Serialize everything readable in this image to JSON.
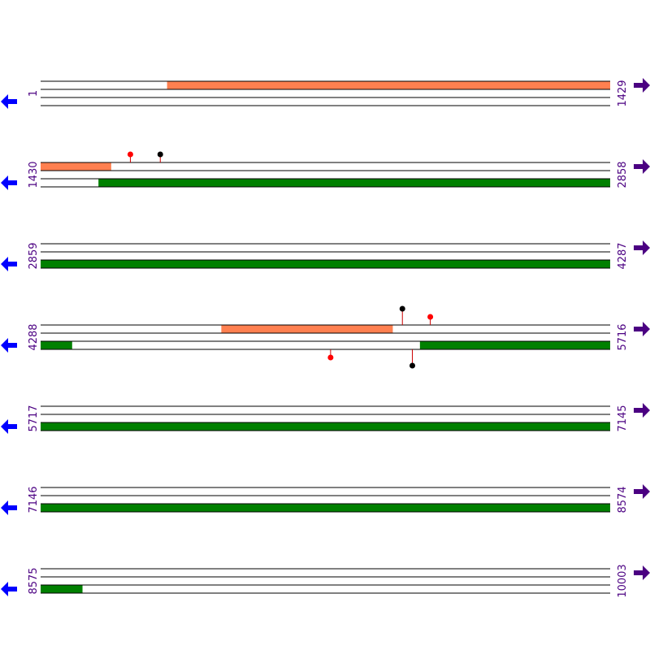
{
  "colors": {
    "line": "#000000",
    "salmon": "#FF8050",
    "green": "#008000",
    "left_arrow": "#0000FF",
    "right_arrow": "#4B0082",
    "label": "#4B0082",
    "stem": "#CC0000",
    "marker_red": "#FF0000",
    "marker_black": "#000000"
  },
  "rows": [
    {
      "start_label": "1",
      "end_label": "1429",
      "start": 1,
      "end": 1429,
      "features": [
        {
          "track": 0,
          "color": "salmon",
          "from": 318,
          "to": 1429
        }
      ],
      "markers": []
    },
    {
      "start_label": "1430",
      "end_label": "2858",
      "start": 1430,
      "end": 2858,
      "features": [
        {
          "track": 0,
          "color": "salmon",
          "from": 1430,
          "to": 1607
        },
        {
          "track": 2,
          "color": "green",
          "from": 1575,
          "to": 2858
        }
      ],
      "markers": [
        {
          "pos": 1655,
          "side": "top",
          "color": "marker_red",
          "height": 1
        },
        {
          "pos": 1730,
          "side": "top",
          "color": "marker_black",
          "height": 1
        }
      ]
    },
    {
      "start_label": "2859",
      "end_label": "4287",
      "start": 2859,
      "end": 4287,
      "features": [
        {
          "track": 2,
          "color": "green",
          "from": 2859,
          "to": 4287
        }
      ],
      "markers": []
    },
    {
      "start_label": "4288",
      "end_label": "5716",
      "start": 4288,
      "end": 5716,
      "features": [
        {
          "track": 0,
          "color": "salmon",
          "from": 4741,
          "to": 5171
        },
        {
          "track": 2,
          "color": "green",
          "from": 4288,
          "to": 4367
        },
        {
          "track": 2,
          "color": "green",
          "from": 5239,
          "to": 5716
        }
      ],
      "markers": [
        {
          "pos": 5195,
          "side": "top",
          "color": "marker_black",
          "height": 2
        },
        {
          "pos": 5265,
          "side": "top",
          "color": "marker_red",
          "height": 1
        },
        {
          "pos": 5015,
          "side": "bottom",
          "color": "marker_red",
          "height": 1
        },
        {
          "pos": 5220,
          "side": "bottom",
          "color": "marker_black",
          "height": 2
        }
      ]
    },
    {
      "start_label": "5717",
      "end_label": "7145",
      "start": 5717,
      "end": 7145,
      "features": [
        {
          "track": 2,
          "color": "green",
          "from": 5717,
          "to": 7145
        }
      ],
      "markers": []
    },
    {
      "start_label": "7146",
      "end_label": "8574",
      "start": 7146,
      "end": 8574,
      "features": [
        {
          "track": 2,
          "color": "green",
          "from": 7146,
          "to": 8574
        }
      ],
      "markers": []
    },
    {
      "start_label": "8575",
      "end_label": "10003",
      "start": 8575,
      "end": 10003,
      "features": [
        {
          "track": 2,
          "color": "green",
          "from": 8575,
          "to": 8680
        }
      ],
      "markers": []
    }
  ]
}
